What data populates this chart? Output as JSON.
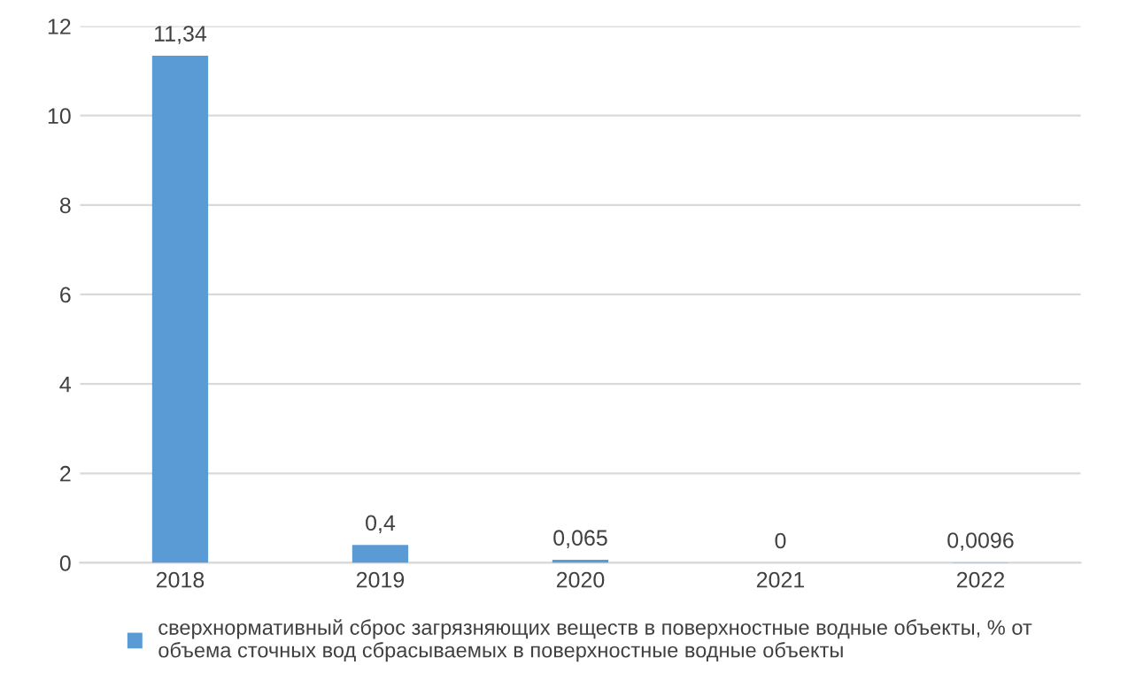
{
  "chart_data": {
    "type": "bar",
    "categories": [
      "2018",
      "2019",
      "2020",
      "2021",
      "2022"
    ],
    "series": [
      {
        "name": "сверхнормативный сброс загрязняющих веществ в поверхностные водные объекты, % от объема сточных вод сбрасываемых в поверхностные водные объекты",
        "color": "#5b9bd5",
        "values": [
          11.34,
          0.4,
          0.065,
          0,
          0.0096
        ],
        "value_labels": [
          "11,34",
          "0,4",
          "0,065",
          "0",
          "0,0096"
        ]
      }
    ],
    "ylim": [
      0,
      12
    ],
    "yticks": [
      0,
      2,
      4,
      6,
      8,
      10,
      12
    ],
    "grid": "y",
    "legend": "bottom"
  }
}
